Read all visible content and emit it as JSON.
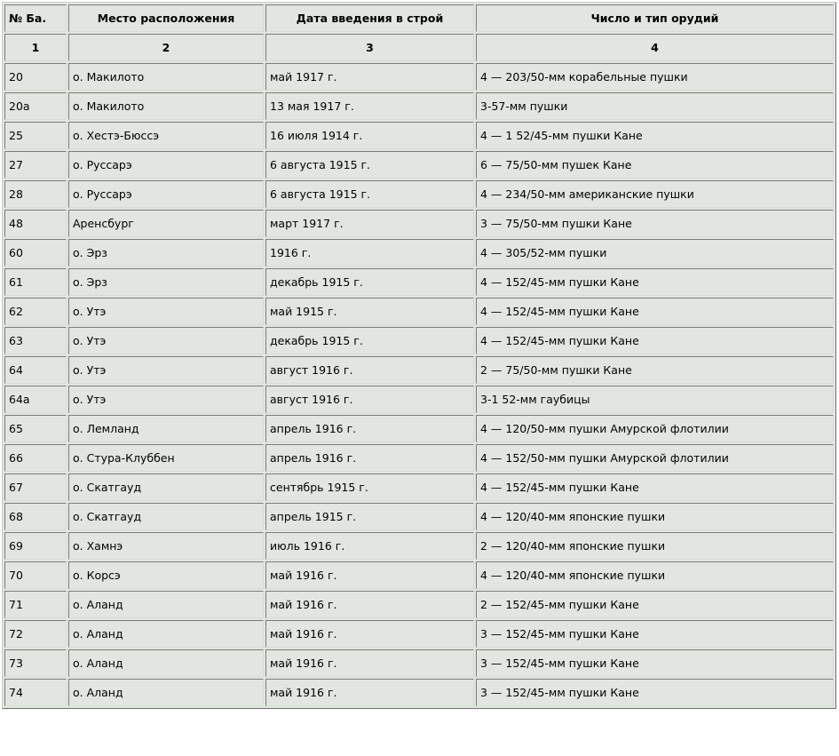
{
  "headers": [
    "№ Ба.",
    "Место расположения",
    "Дата введения в строй",
    "Число и тип орудий"
  ],
  "column_numbers": [
    "1",
    "2",
    "3",
    "4"
  ],
  "rows": [
    [
      "20",
      "о. Макилото",
      "май 1917 г.",
      "4 — 203/50-мм корабельные пушки"
    ],
    [
      "20а",
      "о. Макилото",
      "13 мая 1917 г.",
      "3-57-мм пушки"
    ],
    [
      "25",
      "о. Хестэ-Бюссэ",
      "16 июля 1914 г.",
      "4 — 1 52/45-мм пушки Кане"
    ],
    [
      "27",
      "о. Руссарэ",
      "6 августа 1915 г.",
      "6 — 75/50-мм пушек Кане"
    ],
    [
      "28",
      "о. Руссарэ",
      "6 августа 1915 г.",
      "4 — 234/50-мм американские пушки"
    ],
    [
      "48",
      "Аренсбург",
      "март 1917 г.",
      "3 — 75/50-мм пушки Кане"
    ],
    [
      "60",
      "о. Эрз",
      "1916 г.",
      "4 — 305/52-мм пушки"
    ],
    [
      "61",
      "о. Эрз",
      "декабрь 1915 г.",
      "4 — 152/45-мм пушки Кане"
    ],
    [
      "62",
      "о. Утэ",
      "май 1915 г.",
      "4 — 152/45-мм пушки Кане"
    ],
    [
      "63",
      "о. Утэ",
      "декабрь 1915 г.",
      "4 — 152/45-мм пушки Кане"
    ],
    [
      "64",
      "о. Утэ",
      "август 1916 г.",
      "2 — 75/50-мм пушки Кане"
    ],
    [
      "64а",
      "о. Утэ",
      "август 1916 г.",
      "3-1 52-мм гаубицы"
    ],
    [
      "65",
      "о. Лемланд",
      "апрель 1916 г.",
      "4 — 120/50-мм пушки Амурской флотилии"
    ],
    [
      "66",
      "о. Стура-Клуббен",
      "апрель 1916 г.",
      "4 — 152/50-мм пушки Амурской флотилии"
    ],
    [
      "67",
      "о. Скатгауд",
      "сентябрь 1915 г.",
      "4 — 152/45-мм пушки Кане"
    ],
    [
      "68",
      "о. Скатгауд",
      "апрель 1915 г.",
      "4 — 120/40-мм японские пушки"
    ],
    [
      "69",
      "о. Хамнэ",
      "июль 1916 г.",
      "2 — 120/40-мм японские пушки"
    ],
    [
      "70",
      "о. Корсэ",
      "май 1916 г.",
      "4 — 120/40-мм японские пушки"
    ],
    [
      "71",
      "о. Аланд",
      "май 1916 г.",
      "2 — 152/45-мм пушки Кане"
    ],
    [
      "72",
      "о. Аланд",
      "май 1916 г.",
      "3 — 152/45-мм пушки Кане"
    ],
    [
      "73",
      "о. Аланд",
      "май 1916 г.",
      "3 — 152/45-мм пушки Кане"
    ],
    [
      "74",
      "о. Аланд",
      "май 1916 г.",
      "3 — 152/45-мм пушки Кане"
    ]
  ]
}
